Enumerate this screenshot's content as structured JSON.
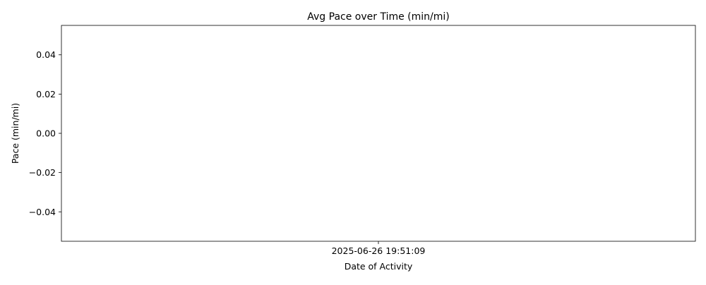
{
  "chart_data": {
    "type": "line",
    "title": "Avg Pace over Time (min/mi)",
    "xlabel": "Date of Activity",
    "ylabel": "Pace (min/mi)",
    "x_ticks": [
      "2025-06-26 19:51:09"
    ],
    "y_ticks": [
      0.04,
      0.02,
      0.0,
      -0.02,
      -0.04
    ],
    "y_tick_labels": [
      "0.04",
      "0.02",
      "0.00",
      "−0.02",
      "−0.04"
    ],
    "ylim": [
      -0.055,
      0.055
    ],
    "series": [
      {
        "x": [
          "2025-06-26 19:51:09"
        ],
        "y": [
          null
        ]
      }
    ],
    "grid": false,
    "legend": false
  }
}
